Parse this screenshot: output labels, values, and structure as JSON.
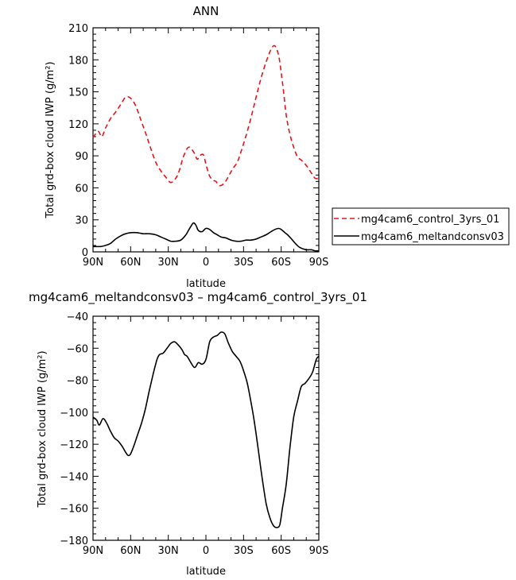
{
  "chart_data": [
    {
      "type": "line",
      "title": "ANN",
      "xlabel": "latitude",
      "ylabel": "Total grd-box cloud IWP (g/m²)",
      "x_ticks": [
        {
          "lat": 90,
          "label": "90N"
        },
        {
          "lat": 60,
          "label": "60N"
        },
        {
          "lat": 30,
          "label": "30N"
        },
        {
          "lat": 0,
          "label": "0"
        },
        {
          "lat": -30,
          "label": "30S"
        },
        {
          "lat": -60,
          "label": "60S"
        },
        {
          "lat": -90,
          "label": "90S"
        }
      ],
      "xlim": [
        90,
        -90
      ],
      "ylim": [
        0,
        210
      ],
      "y_ticks": [
        0,
        30,
        60,
        90,
        120,
        150,
        180,
        210
      ],
      "legend_position": "right",
      "series": [
        {
          "name": "mg4cam6_control_3yrs_01",
          "color": "#e8141c",
          "dash": "dashed",
          "x": [
            90,
            86,
            83,
            80,
            76,
            72,
            68,
            64,
            60,
            56,
            52,
            48,
            44,
            40,
            36,
            32,
            28,
            24,
            21,
            18,
            14,
            10,
            7,
            5,
            2,
            0,
            -3,
            -6,
            -8,
            -11,
            -15,
            -19,
            -22,
            -25,
            -28,
            -32,
            -36,
            -40,
            -44,
            -48,
            -52,
            -55,
            -58,
            -60,
            -62,
            -64,
            -67,
            -70,
            -73,
            -76,
            -80,
            -84,
            -87,
            -90
          ],
          "y": [
            107,
            113,
            108,
            116,
            125,
            131,
            138,
            145,
            144,
            137,
            124,
            111,
            97,
            84,
            76,
            70,
            65,
            69,
            77,
            89,
            98,
            94,
            87,
            90,
            91,
            82,
            71,
            67,
            66,
            62,
            65,
            73,
            79,
            84,
            94,
            109,
            126,
            145,
            163,
            178,
            190,
            193,
            184,
            168,
            149,
            128,
            110,
            98,
            89,
            86,
            81,
            74,
            69,
            69
          ]
        },
        {
          "name": "mg4cam6_meltandconsv03",
          "color": "#000000",
          "dash": "solid",
          "x": [
            90,
            84,
            80,
            76,
            72,
            68,
            64,
            60,
            55,
            50,
            45,
            40,
            36,
            32,
            28,
            24,
            20,
            16,
            13,
            10,
            8,
            6,
            3,
            0,
            -3,
            -6,
            -9,
            -12,
            -16,
            -20,
            -24,
            -28,
            -32,
            -36,
            -40,
            -44,
            -48,
            -52,
            -55,
            -58,
            -60,
            -63,
            -66,
            -69,
            -72,
            -75,
            -80,
            -84,
            -87,
            -90
          ],
          "y": [
            5,
            5,
            6,
            8,
            12,
            15,
            17,
            18,
            18,
            17,
            17,
            16,
            14,
            12,
            10,
            10,
            11,
            16,
            22,
            27,
            25,
            20,
            19,
            22,
            21,
            18,
            16,
            14,
            13,
            11,
            10,
            10,
            11,
            11,
            12,
            14,
            16,
            19,
            21,
            22,
            21,
            18,
            15,
            11,
            7,
            4,
            2,
            2,
            1,
            1
          ]
        }
      ]
    },
    {
      "type": "line",
      "title": "mg4cam6_meltandconsv03 – mg4cam6_control_3yrs_01",
      "xlabel": "latitude",
      "ylabel": "Total grd-box cloud IWP (g/m²)",
      "x_ticks": [
        {
          "lat": 90,
          "label": "90N"
        },
        {
          "lat": 60,
          "label": "60N"
        },
        {
          "lat": 30,
          "label": "30N"
        },
        {
          "lat": 0,
          "label": "0"
        },
        {
          "lat": -30,
          "label": "30S"
        },
        {
          "lat": -60,
          "label": "60S"
        },
        {
          "lat": -90,
          "label": "90S"
        }
      ],
      "xlim": [
        90,
        -90
      ],
      "ylim": [
        -180,
        -40
      ],
      "y_ticks": [
        -180,
        -160,
        -140,
        -120,
        -100,
        -80,
        -60,
        -40
      ],
      "series": [
        {
          "color": "#000000",
          "dash": "solid",
          "x": [
            90,
            87,
            85,
            82,
            79,
            76,
            73,
            70,
            67,
            64,
            62,
            60,
            57,
            54,
            51,
            48,
            45,
            42,
            39,
            37,
            34,
            31,
            28,
            25,
            22,
            19,
            17,
            15,
            12,
            9,
            6,
            3,
            0,
            -3,
            -6,
            -9,
            -12,
            -15,
            -18,
            -21,
            -24,
            -27,
            -30,
            -33,
            -36,
            -39,
            -42,
            -45,
            -48,
            -51,
            -54,
            -57,
            -59,
            -61,
            -64,
            -67,
            -70,
            -73,
            -76,
            -79,
            -82,
            -85,
            -88,
            -90
          ],
          "y": [
            -103,
            -105,
            -108,
            -104,
            -107,
            -112,
            -116,
            -118,
            -121,
            -125,
            -127,
            -126,
            -120,
            -113,
            -106,
            -97,
            -86,
            -76,
            -67,
            -64,
            -63,
            -60,
            -57,
            -56,
            -58,
            -61,
            -64,
            -65,
            -69,
            -72,
            -69,
            -70,
            -67,
            -56,
            -53,
            -52,
            -50,
            -51,
            -57,
            -62,
            -65,
            -68,
            -74,
            -82,
            -94,
            -108,
            -125,
            -142,
            -157,
            -166,
            -171,
            -172,
            -170,
            -160,
            -145,
            -122,
            -103,
            -93,
            -84,
            -82,
            -79,
            -75,
            -67,
            -65
          ]
        }
      ]
    }
  ]
}
